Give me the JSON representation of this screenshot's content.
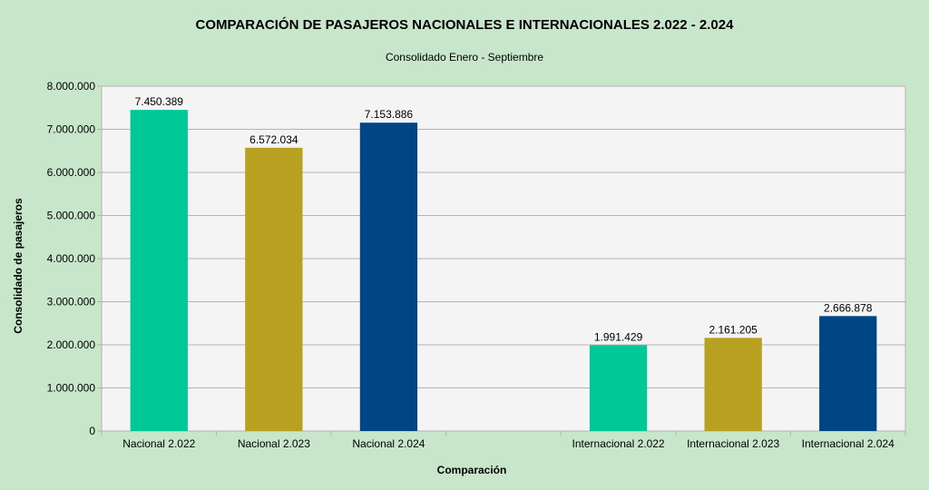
{
  "chart_data": {
    "type": "bar",
    "title": "COMPARACIÓN DE PASAJEROS NACIONALES E INTERNACIONALES 2.022 - 2.024",
    "subtitle": "Consolidado Enero - Septiembre",
    "xlabel": "Comparación",
    "ylabel": "Consolidado de pasajeros",
    "ylim": [
      0,
      8000000
    ],
    "yticks": [
      0,
      1000000,
      2000000,
      3000000,
      4000000,
      5000000,
      6000000,
      7000000,
      8000000
    ],
    "ytick_labels": [
      "0",
      "1.000.000",
      "2.000.000",
      "3.000.000",
      "4.000.000",
      "5.000.000",
      "6.000.000",
      "7.000.000",
      "8.000.000"
    ],
    "grid": true,
    "categories": [
      "Nacional 2.022",
      "Nacional 2.023",
      "Nacional 2.024",
      "",
      "Internacional 2.022",
      "Internacional 2.023",
      "Internacional 2.024"
    ],
    "values": [
      7450389,
      6572034,
      7153886,
      null,
      1991429,
      2161205,
      2666878
    ],
    "value_labels": [
      "7.450.389",
      "6.572.034",
      "7.153.886",
      "",
      "1.991.429",
      "2.161.205",
      "2.666.878"
    ],
    "bar_colors": [
      "#00c896",
      "#b8a020",
      "#004586",
      "",
      "#00c896",
      "#b8a020",
      "#004586"
    ]
  }
}
